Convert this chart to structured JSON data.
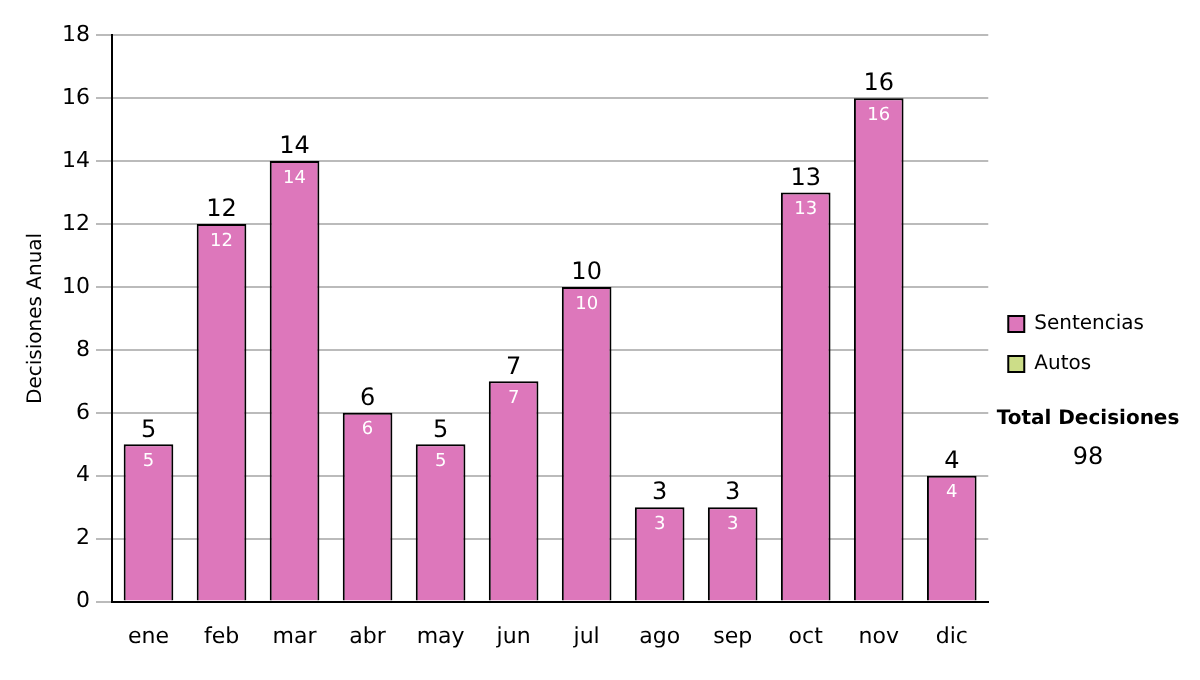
{
  "chart_data": {
    "type": "bar",
    "ylabel": "Decisiones Anual",
    "categories": [
      "ene",
      "feb",
      "mar",
      "abr",
      "may",
      "jun",
      "jul",
      "ago",
      "sep",
      "oct",
      "nov",
      "dic"
    ],
    "series": [
      {
        "name": "Sentencias",
        "color": "#dd77bb",
        "values": [
          5,
          12,
          14,
          6,
          5,
          7,
          10,
          3,
          3,
          13,
          16,
          4
        ]
      },
      {
        "name": "Autos",
        "color": "#ccdd88",
        "values": [
          null,
          null,
          null,
          null,
          null,
          null,
          null,
          null,
          null,
          null,
          null,
          null
        ]
      }
    ],
    "stacked": true,
    "data_labels": true,
    "totals": [
      "5",
      "12",
      "14",
      "6",
      "5",
      "7",
      "10",
      "3",
      "3",
      "13",
      "16",
      "4"
    ],
    "ylim": [
      0,
      18
    ],
    "yticks": [
      0,
      2,
      4,
      6,
      8,
      10,
      12,
      14,
      16,
      18
    ],
    "grid": "y",
    "legend": "right",
    "annotations": [
      "Total Decisiones",
      "98"
    ]
  }
}
